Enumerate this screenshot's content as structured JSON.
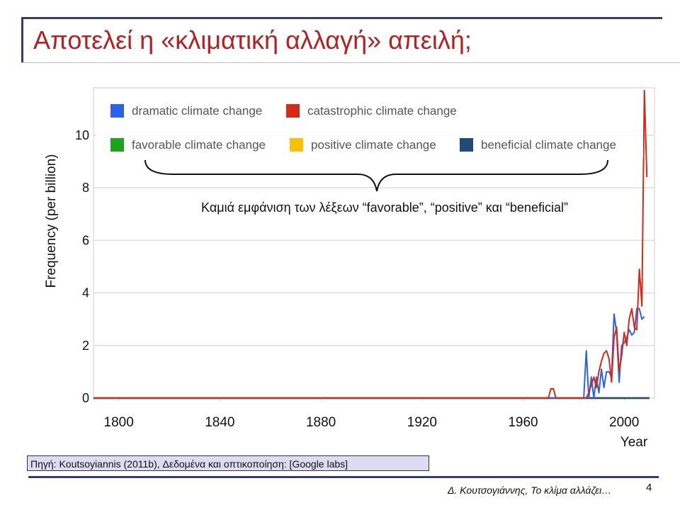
{
  "slide": {
    "title": "Αποτελεί η «κλιματική αλλαγή» απειλή;",
    "source": "Πηγή: Koutsoyiannis (2011b), Δεδομένα και οπτικοποίηση: [Google labs]",
    "footer": "Δ. Κουτσογιάννης, Το κλίμα αλλάζει…",
    "page_number": "4"
  },
  "colors": {
    "title": "#b22222",
    "accent_bar": "#3b3b6b",
    "source_bg": "#dcdcf2"
  },
  "chart_data": {
    "type": "line",
    "xlabel": "Year",
    "ylabel": "Frequency (per billion)",
    "xlim": [
      1790,
      2012
    ],
    "ylim": [
      0,
      11.8
    ],
    "x_ticks": [
      1800,
      1840,
      1880,
      1920,
      1960,
      2000
    ],
    "y_ticks": [
      0,
      2,
      4,
      6,
      8,
      10
    ],
    "grid": true,
    "legend_position": "top",
    "annotation": "Καμιά εμφάνιση των λέξεων “favorable”, “positive” και “beneficial”",
    "series": [
      {
        "name": "dramatic climate change",
        "color": "#2a62e8",
        "points": [
          [
            1790,
            0
          ],
          [
            1984,
            0
          ],
          [
            1985,
            1.8
          ],
          [
            1986,
            0
          ],
          [
            1987,
            0.8
          ],
          [
            1988,
            0
          ],
          [
            1989,
            0.8
          ],
          [
            1990,
            0.2
          ],
          [
            1991,
            1.1
          ],
          [
            1992,
            0.4
          ],
          [
            1993,
            1.0
          ],
          [
            1994,
            1.0
          ],
          [
            1995,
            0.8
          ],
          [
            1996,
            3.2
          ],
          [
            1997,
            2.5
          ],
          [
            1998,
            0.6
          ],
          [
            1999,
            2.0
          ],
          [
            2000,
            2.1
          ],
          [
            2001,
            2.3
          ],
          [
            2002,
            2.6
          ],
          [
            2003,
            2.4
          ],
          [
            2004,
            2.5
          ],
          [
            2005,
            3.4
          ],
          [
            2006,
            3.4
          ],
          [
            2007,
            3.0
          ],
          [
            2008,
            3.1
          ]
        ]
      },
      {
        "name": "catastrophic climate change",
        "color": "#d42a1a",
        "points": [
          [
            1790,
            0
          ],
          [
            1970,
            0
          ],
          [
            1971,
            0.35
          ],
          [
            1972,
            0.35
          ],
          [
            1973,
            0
          ],
          [
            1985,
            0
          ],
          [
            1986,
            0.2
          ],
          [
            1987,
            0.5
          ],
          [
            1988,
            0.8
          ],
          [
            1989,
            0.4
          ],
          [
            1990,
            1.0
          ],
          [
            1991,
            1.4
          ],
          [
            1992,
            1.7
          ],
          [
            1993,
            1.8
          ],
          [
            1994,
            1.5
          ],
          [
            1995,
            0.6
          ],
          [
            1996,
            2.3
          ],
          [
            1997,
            2.7
          ],
          [
            1998,
            1.0
          ],
          [
            1999,
            1.6
          ],
          [
            2000,
            2.5
          ],
          [
            2001,
            2.0
          ],
          [
            2002,
            3.0
          ],
          [
            2003,
            3.4
          ],
          [
            2004,
            2.7
          ],
          [
            2005,
            2.6
          ],
          [
            2006,
            4.9
          ],
          [
            2007,
            3.5
          ],
          [
            2008,
            11.7
          ],
          [
            2009,
            8.4
          ]
        ]
      },
      {
        "name": "favorable climate change",
        "color": "#1ea31e",
        "points": [
          [
            1790,
            0
          ],
          [
            2010,
            0
          ]
        ]
      },
      {
        "name": "positive climate change",
        "color": "#f5c20a",
        "points": [
          [
            1790,
            0
          ],
          [
            2010,
            0
          ]
        ]
      },
      {
        "name": "beneficial climate change",
        "color": "#1f4a7a",
        "points": [
          [
            1790,
            0
          ],
          [
            2010,
            0
          ]
        ]
      }
    ]
  }
}
